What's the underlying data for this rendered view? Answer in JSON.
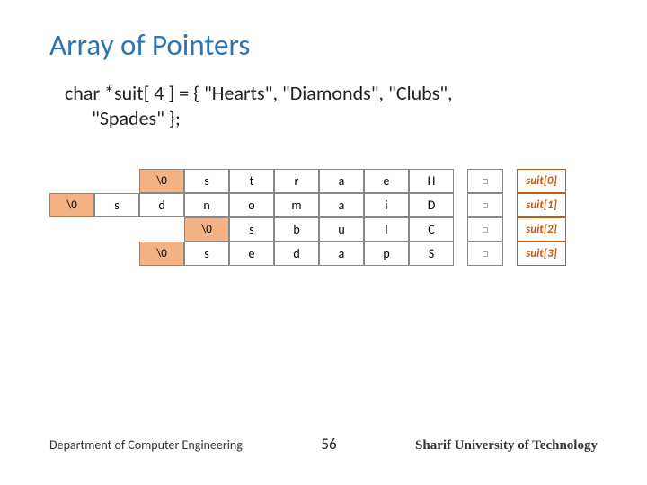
{
  "title": {
    "text": "Array of Pointers",
    "color": "#2e74b5"
  },
  "declaration": {
    "line1": "char *suit[ 4 ] = { \"Hearts\", \"Diamonds\", \"Clubs\",",
    "line2": "\"Spades\" };"
  },
  "grid": {
    "cols": 9,
    "null_cell_bg": "#f4b183",
    "border_color": "#888888",
    "rows": [
      {
        "offset": 2,
        "cells": [
          "\\0",
          "s",
          "t",
          "r",
          "a",
          "e",
          "H"
        ],
        "ptr": "□",
        "label": "suit[0]"
      },
      {
        "offset": 0,
        "cells": [
          "\\0",
          "s",
          "d",
          "n",
          "o",
          "m",
          "a",
          "i",
          "D"
        ],
        "ptr": "□",
        "label": "suit[1]"
      },
      {
        "offset": 3,
        "cells": [
          "\\0",
          "s",
          "b",
          "u",
          "l",
          "C"
        ],
        "ptr": "□",
        "label": "suit[2]"
      },
      {
        "offset": 2,
        "cells": [
          "\\0",
          "s",
          "e",
          "d",
          "a",
          "p",
          "S"
        ],
        "ptr": "□",
        "label": "suit[3]"
      }
    ],
    "label_color": "#c55a11"
  },
  "footer": {
    "dept": "Department of Computer Engineering",
    "page": "56",
    "uni": "Sharif University of Technology"
  }
}
